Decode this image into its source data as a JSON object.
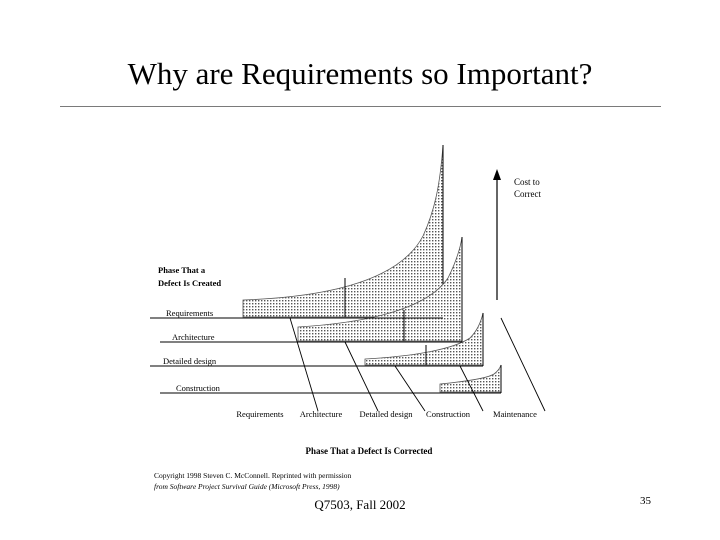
{
  "slide": {
    "title": "Why are Requirements so Important?",
    "footer": "Q7503, Fall 2002",
    "page_number": "35"
  },
  "figure": {
    "cost_label_line1": "Cost to",
    "cost_label_line2": "Correct",
    "created_heading_line1": "Phase That a",
    "created_heading_line2": "Defect Is Created",
    "created_phases": [
      "Requirements",
      "Architecture",
      "Detailed design",
      "Construction"
    ],
    "corrected_phases": [
      "Requirements",
      "Architecture",
      "Detailed design",
      "Construction",
      "Maintenance"
    ],
    "corrected_heading": "Phase That a Defect Is Corrected",
    "copyright_line1": "Copyright 1998 Steven C. McConnell. Reprinted with permission",
    "copyright_line2": "from Software Project Survival Guide (Microsoft Press, 1998)"
  }
}
